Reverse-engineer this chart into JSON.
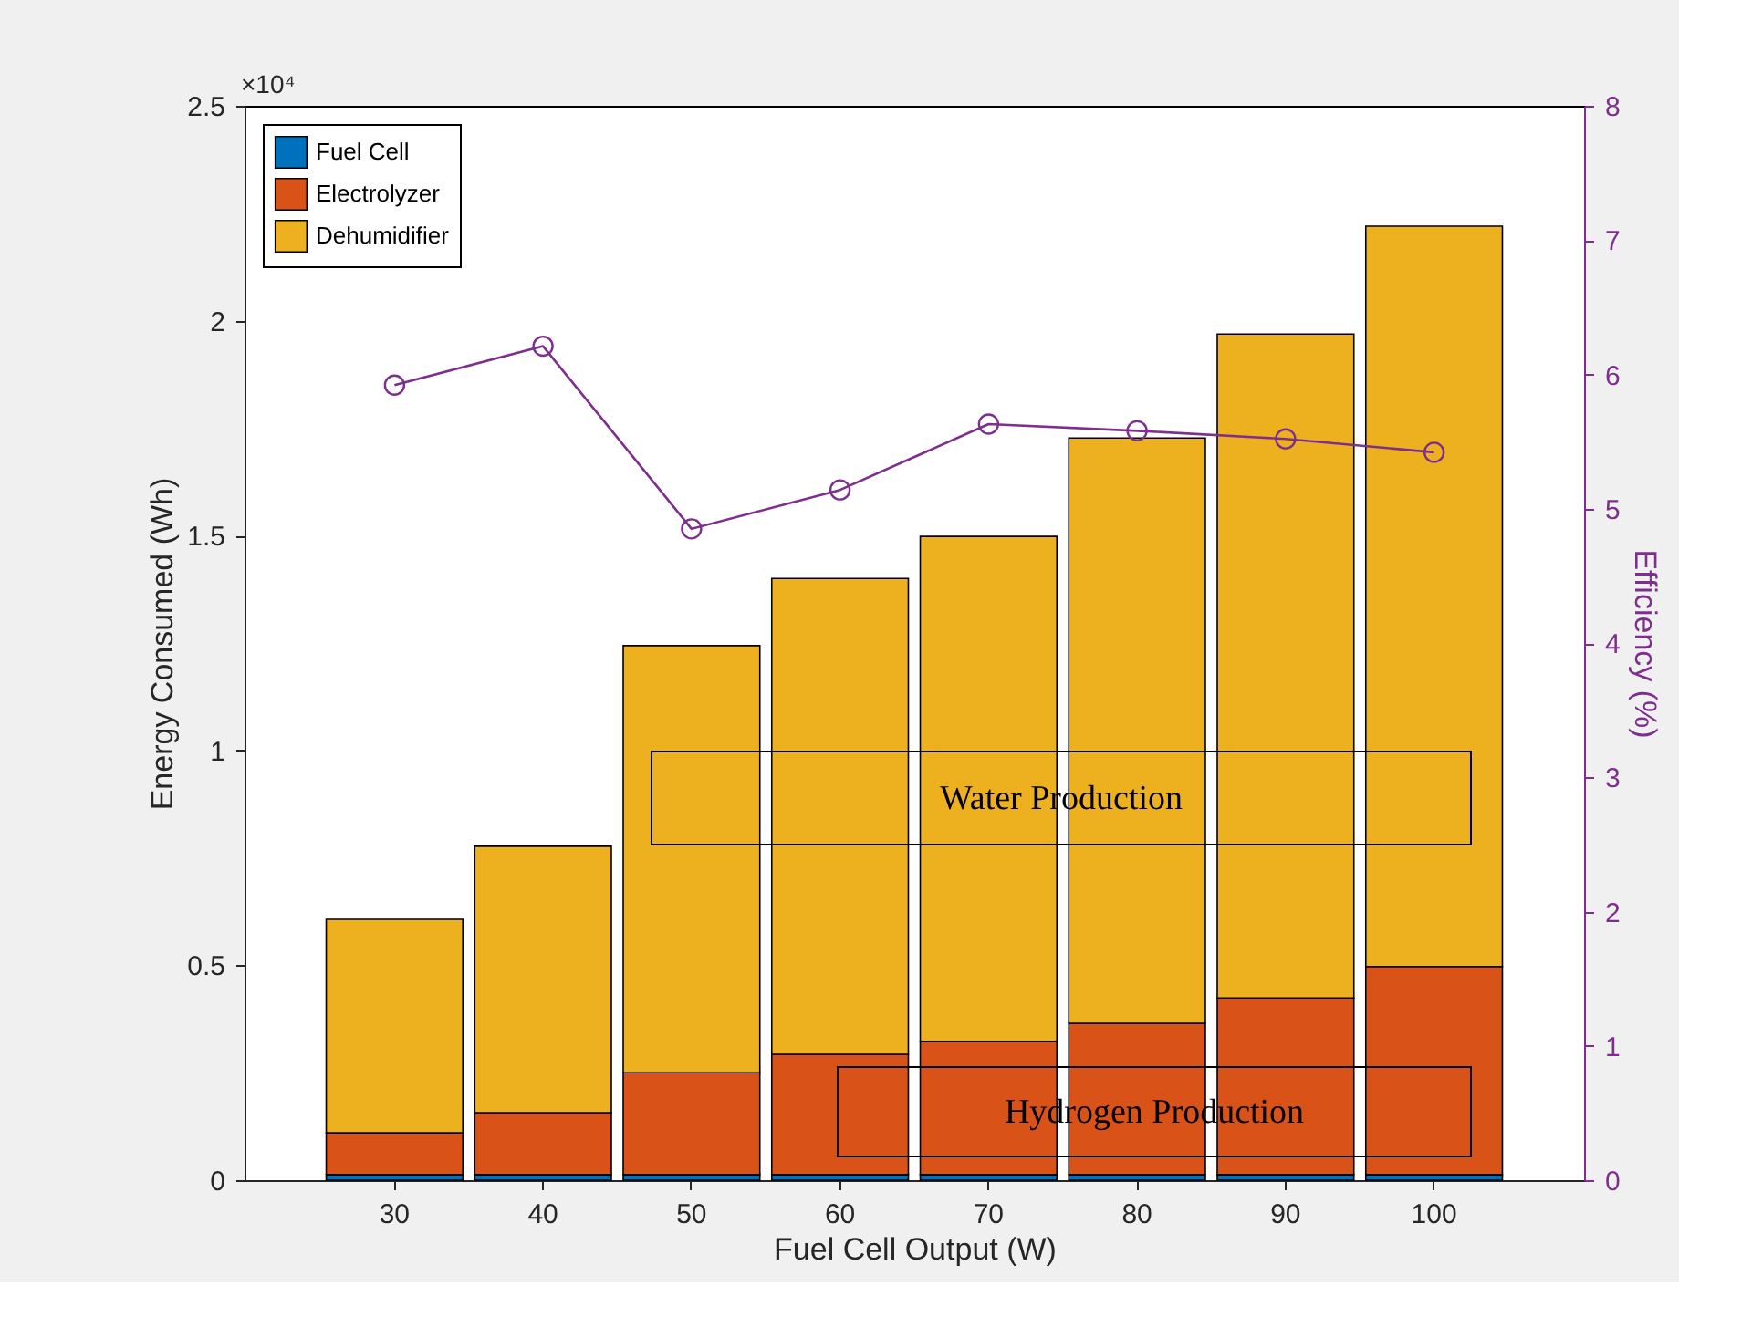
{
  "chart_data": {
    "type": "bar",
    "stacked": true,
    "xlabel": "Fuel Cell Output (W)",
    "ylabel": "Energy Consumed (Wh)",
    "y2label": "Efficiency (%)",
    "categories": [
      "30",
      "40",
      "50",
      "60",
      "70",
      "80",
      "90",
      "100"
    ],
    "series": [
      {
        "name": "Fuel Cell",
        "color": "#0072bd",
        "values": [
          0.013,
          0.013,
          0.013,
          0.013,
          0.013,
          0.013,
          0.013,
          0.013
        ]
      },
      {
        "name": "Electrolyzer",
        "color": "#d95319",
        "values": [
          0.097,
          0.144,
          0.237,
          0.28,
          0.31,
          0.352,
          0.411,
          0.484
        ]
      },
      {
        "name": "Dehumidifier",
        "color": "#edb120",
        "values": [
          0.497,
          0.62,
          0.994,
          1.107,
          1.175,
          1.362,
          1.545,
          1.723
        ]
      },
      {
        "type": "line",
        "axis": "y2",
        "color": "#7e2f8e",
        "marker": "circle",
        "values": [
          5.92,
          6.21,
          4.85,
          5.14,
          5.63,
          5.58,
          5.52,
          5.42
        ]
      }
    ],
    "ylim": [
      0,
      2.5
    ],
    "yticks": [
      0,
      0.5,
      1,
      1.5,
      2,
      2.5
    ],
    "y2lim": [
      0,
      8
    ],
    "y2ticks": [
      0,
      1,
      2,
      3,
      4,
      5,
      6,
      7,
      8
    ],
    "annotations": [
      "×10⁴",
      "Water Production",
      "Hydrogen Production"
    ],
    "legend": "top left",
    "grid": false
  }
}
